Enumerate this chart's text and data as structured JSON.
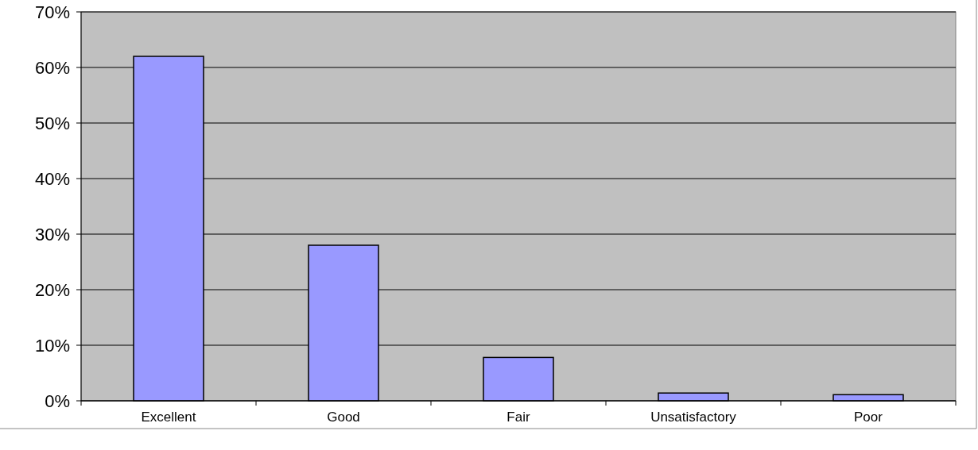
{
  "chart_data": {
    "type": "bar",
    "categories": [
      "Excellent",
      "Good",
      "Fair",
      "Unsatisfactory",
      "Poor"
    ],
    "values": [
      62,
      28,
      7.8,
      1.4,
      1.1
    ],
    "color": "#9999ff",
    "ylim": [
      0,
      70
    ],
    "yticks": [
      {
        "value": 0,
        "label": "0%"
      },
      {
        "value": 10,
        "label": "10%"
      },
      {
        "value": 20,
        "label": "20%"
      },
      {
        "value": 30,
        "label": "30%"
      },
      {
        "value": 40,
        "label": "40%"
      },
      {
        "value": 50,
        "label": "50%"
      },
      {
        "value": 60,
        "label": "60%"
      },
      {
        "value": 70,
        "label": "70%"
      }
    ],
    "grid": "y"
  }
}
